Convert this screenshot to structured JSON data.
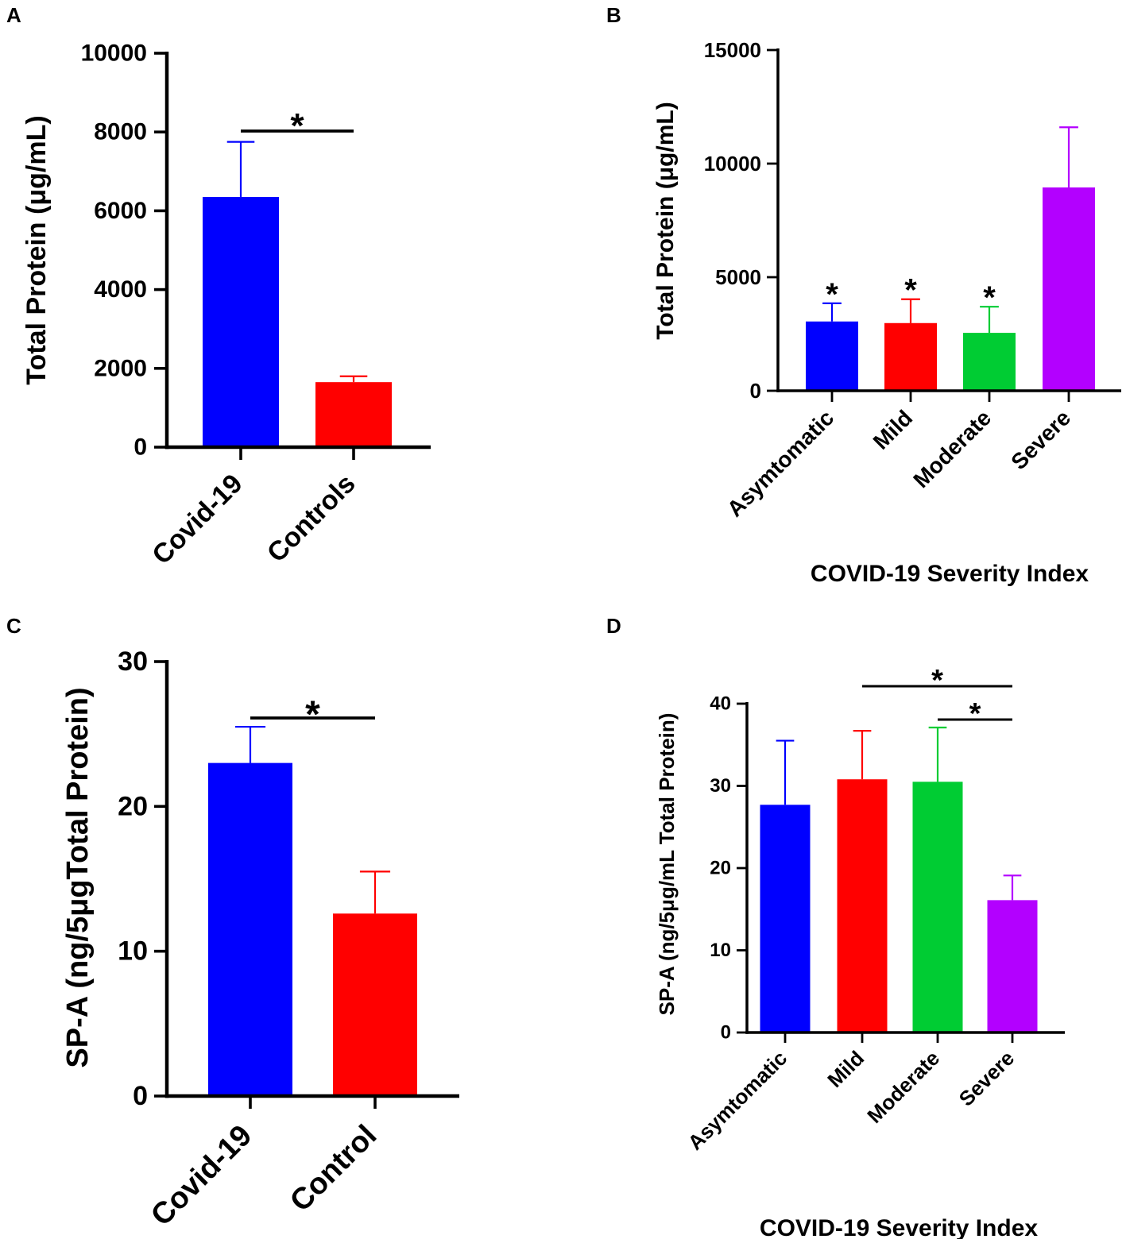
{
  "figure": {
    "panels": [
      "A",
      "B",
      "C",
      "D"
    ]
  },
  "chart_data": [
    {
      "panel": "A",
      "type": "bar",
      "categories": [
        "Covid-19",
        "Controls"
      ],
      "values": [
        6350,
        1650
      ],
      "errors": [
        1400,
        150
      ],
      "colors": [
        "#0000ff",
        "#ff0000"
      ],
      "ylabel": "Total Protein (μg/mL)",
      "xlabel": "",
      "ylim": [
        0,
        10000
      ],
      "yticks": [
        "0",
        "2000",
        "4000",
        "6000",
        "8000",
        "10000"
      ],
      "significance": [
        {
          "from": 0,
          "to": 1,
          "label": "*"
        }
      ]
    },
    {
      "panel": "B",
      "type": "bar",
      "categories": [
        "Asymtomatic",
        "Mild",
        "Moderate",
        "Severe"
      ],
      "values": [
        3050,
        2980,
        2550,
        8950
      ],
      "errors": [
        800,
        1050,
        1150,
        2650
      ],
      "colors": [
        "#0000ff",
        "#ff0000",
        "#00cc33",
        "#b300ff"
      ],
      "ylabel": "Total Protein (μg/mL)",
      "xlabel": "COVID-19 Severity Index",
      "ylim": [
        0,
        15000
      ],
      "yticks": [
        "0",
        "5000",
        "10000",
        "15000"
      ],
      "bar_stars": [
        "*",
        "*",
        "*",
        ""
      ]
    },
    {
      "panel": "C",
      "type": "bar",
      "categories": [
        "Covid-19",
        "Control"
      ],
      "values": [
        23,
        12.6
      ],
      "errors": [
        2.5,
        2.9
      ],
      "colors": [
        "#0000ff",
        "#ff0000"
      ],
      "ylabel": "SP-A (ng/5μgTotal Protein)",
      "xlabel": "",
      "ylim": [
        0,
        30
      ],
      "yticks": [
        "0",
        "10",
        "20",
        "30"
      ],
      "significance": [
        {
          "from": 0,
          "to": 1,
          "label": "*"
        }
      ]
    },
    {
      "panel": "D",
      "type": "bar",
      "categories": [
        "Asymtomatic",
        "Mild",
        "Moderate",
        "Severe"
      ],
      "values": [
        27.7,
        30.8,
        30.5,
        16.1
      ],
      "errors": [
        7.8,
        5.9,
        6.6,
        3.0
      ],
      "colors": [
        "#0000ff",
        "#ff0000",
        "#00cc33",
        "#b300ff"
      ],
      "ylabel": "SP-A (ng/5μg/mL Total Protein)",
      "xlabel": "COVID-19 Severity Index",
      "ylim": [
        0,
        40
      ],
      "yticks": [
        "0",
        "10",
        "20",
        "30",
        "40"
      ],
      "significance": [
        {
          "from": 1,
          "to": 3,
          "label": "*"
        },
        {
          "from": 2,
          "to": 3,
          "label": "*"
        }
      ]
    }
  ]
}
